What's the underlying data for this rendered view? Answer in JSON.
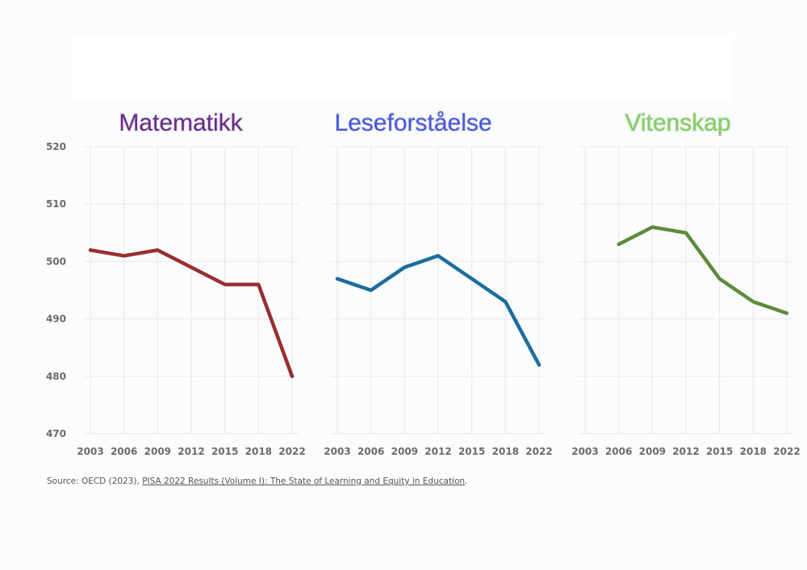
{
  "chart_data": [
    {
      "type": "line",
      "title": "Matematikk",
      "title_color": "#6a2a8c",
      "line_color": "#9b2e2e",
      "x": [
        "2003",
        "2006",
        "2009",
        "2012",
        "2015",
        "2018",
        "2022"
      ],
      "values": [
        502,
        501,
        502,
        499,
        496,
        496,
        480
      ],
      "ylim": [
        470,
        520
      ],
      "yticks": [
        "520",
        "510",
        "500",
        "490",
        "480",
        "470"
      ]
    },
    {
      "type": "line",
      "title": "Leseforståelse",
      "title_color": "#4656e0",
      "line_color": "#1b6d9e",
      "x": [
        "2003",
        "2006",
        "2009",
        "2012",
        "2015",
        "2018",
        "2022"
      ],
      "values": [
        497,
        495,
        499,
        501,
        497,
        493,
        482
      ],
      "ylim": [
        470,
        520
      ]
    },
    {
      "type": "line",
      "title": "Vitenskap",
      "title_color": "#7ed35a",
      "line_color": "#5e8a3e",
      "x": [
        "2003",
        "2006",
        "2009",
        "2012",
        "2015",
        "2018",
        "2022"
      ],
      "values": [
        null,
        503,
        506,
        505,
        497,
        493,
        491
      ],
      "ylim": [
        470,
        520
      ]
    }
  ],
  "source": {
    "prefix": "Source: OECD (2023), ",
    "link_text": "PISA 2022 Results (Volume I): The State of Learning and Equity in Education",
    "suffix": "."
  }
}
